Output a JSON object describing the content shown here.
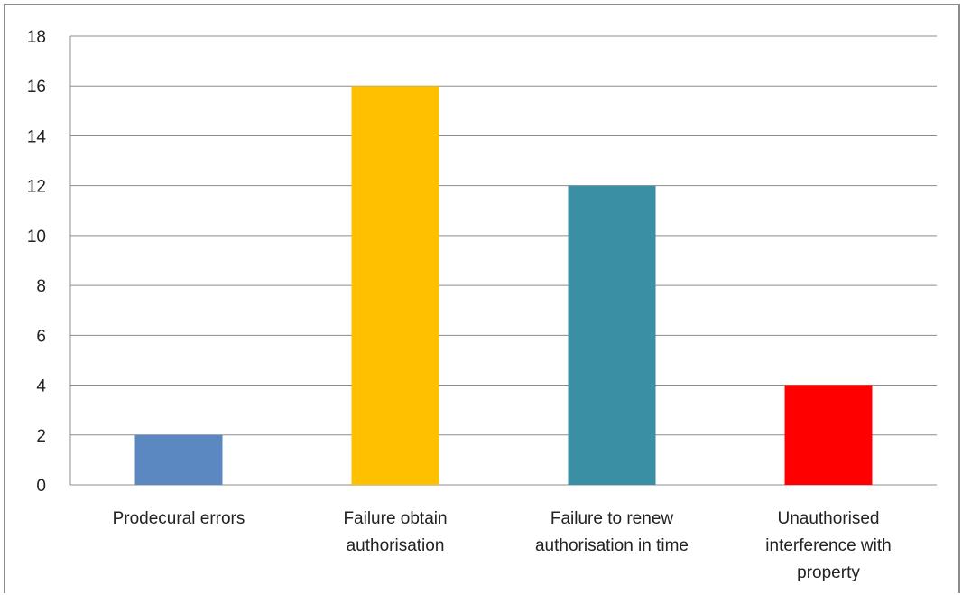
{
  "chart_data": {
    "type": "bar",
    "categories": [
      [
        "Prodecural errors"
      ],
      [
        "Failure obtain",
        "authorisation"
      ],
      [
        "Failure to renew",
        "authorisation in time"
      ],
      [
        "Unauthorised",
        "interference with",
        "property"
      ]
    ],
    "values": [
      2,
      16,
      12,
      4
    ],
    "bar_colors": [
      "#5b88c1",
      "#ffc000",
      "#3a8fa4",
      "#ff0000"
    ],
    "yticks": [
      "0",
      "2",
      "4",
      "6",
      "8",
      "10",
      "12",
      "14",
      "16",
      "18"
    ],
    "ylim": [
      0,
      18
    ],
    "grid": true,
    "legend": "none",
    "gridline_color": "#8c8c8c"
  }
}
